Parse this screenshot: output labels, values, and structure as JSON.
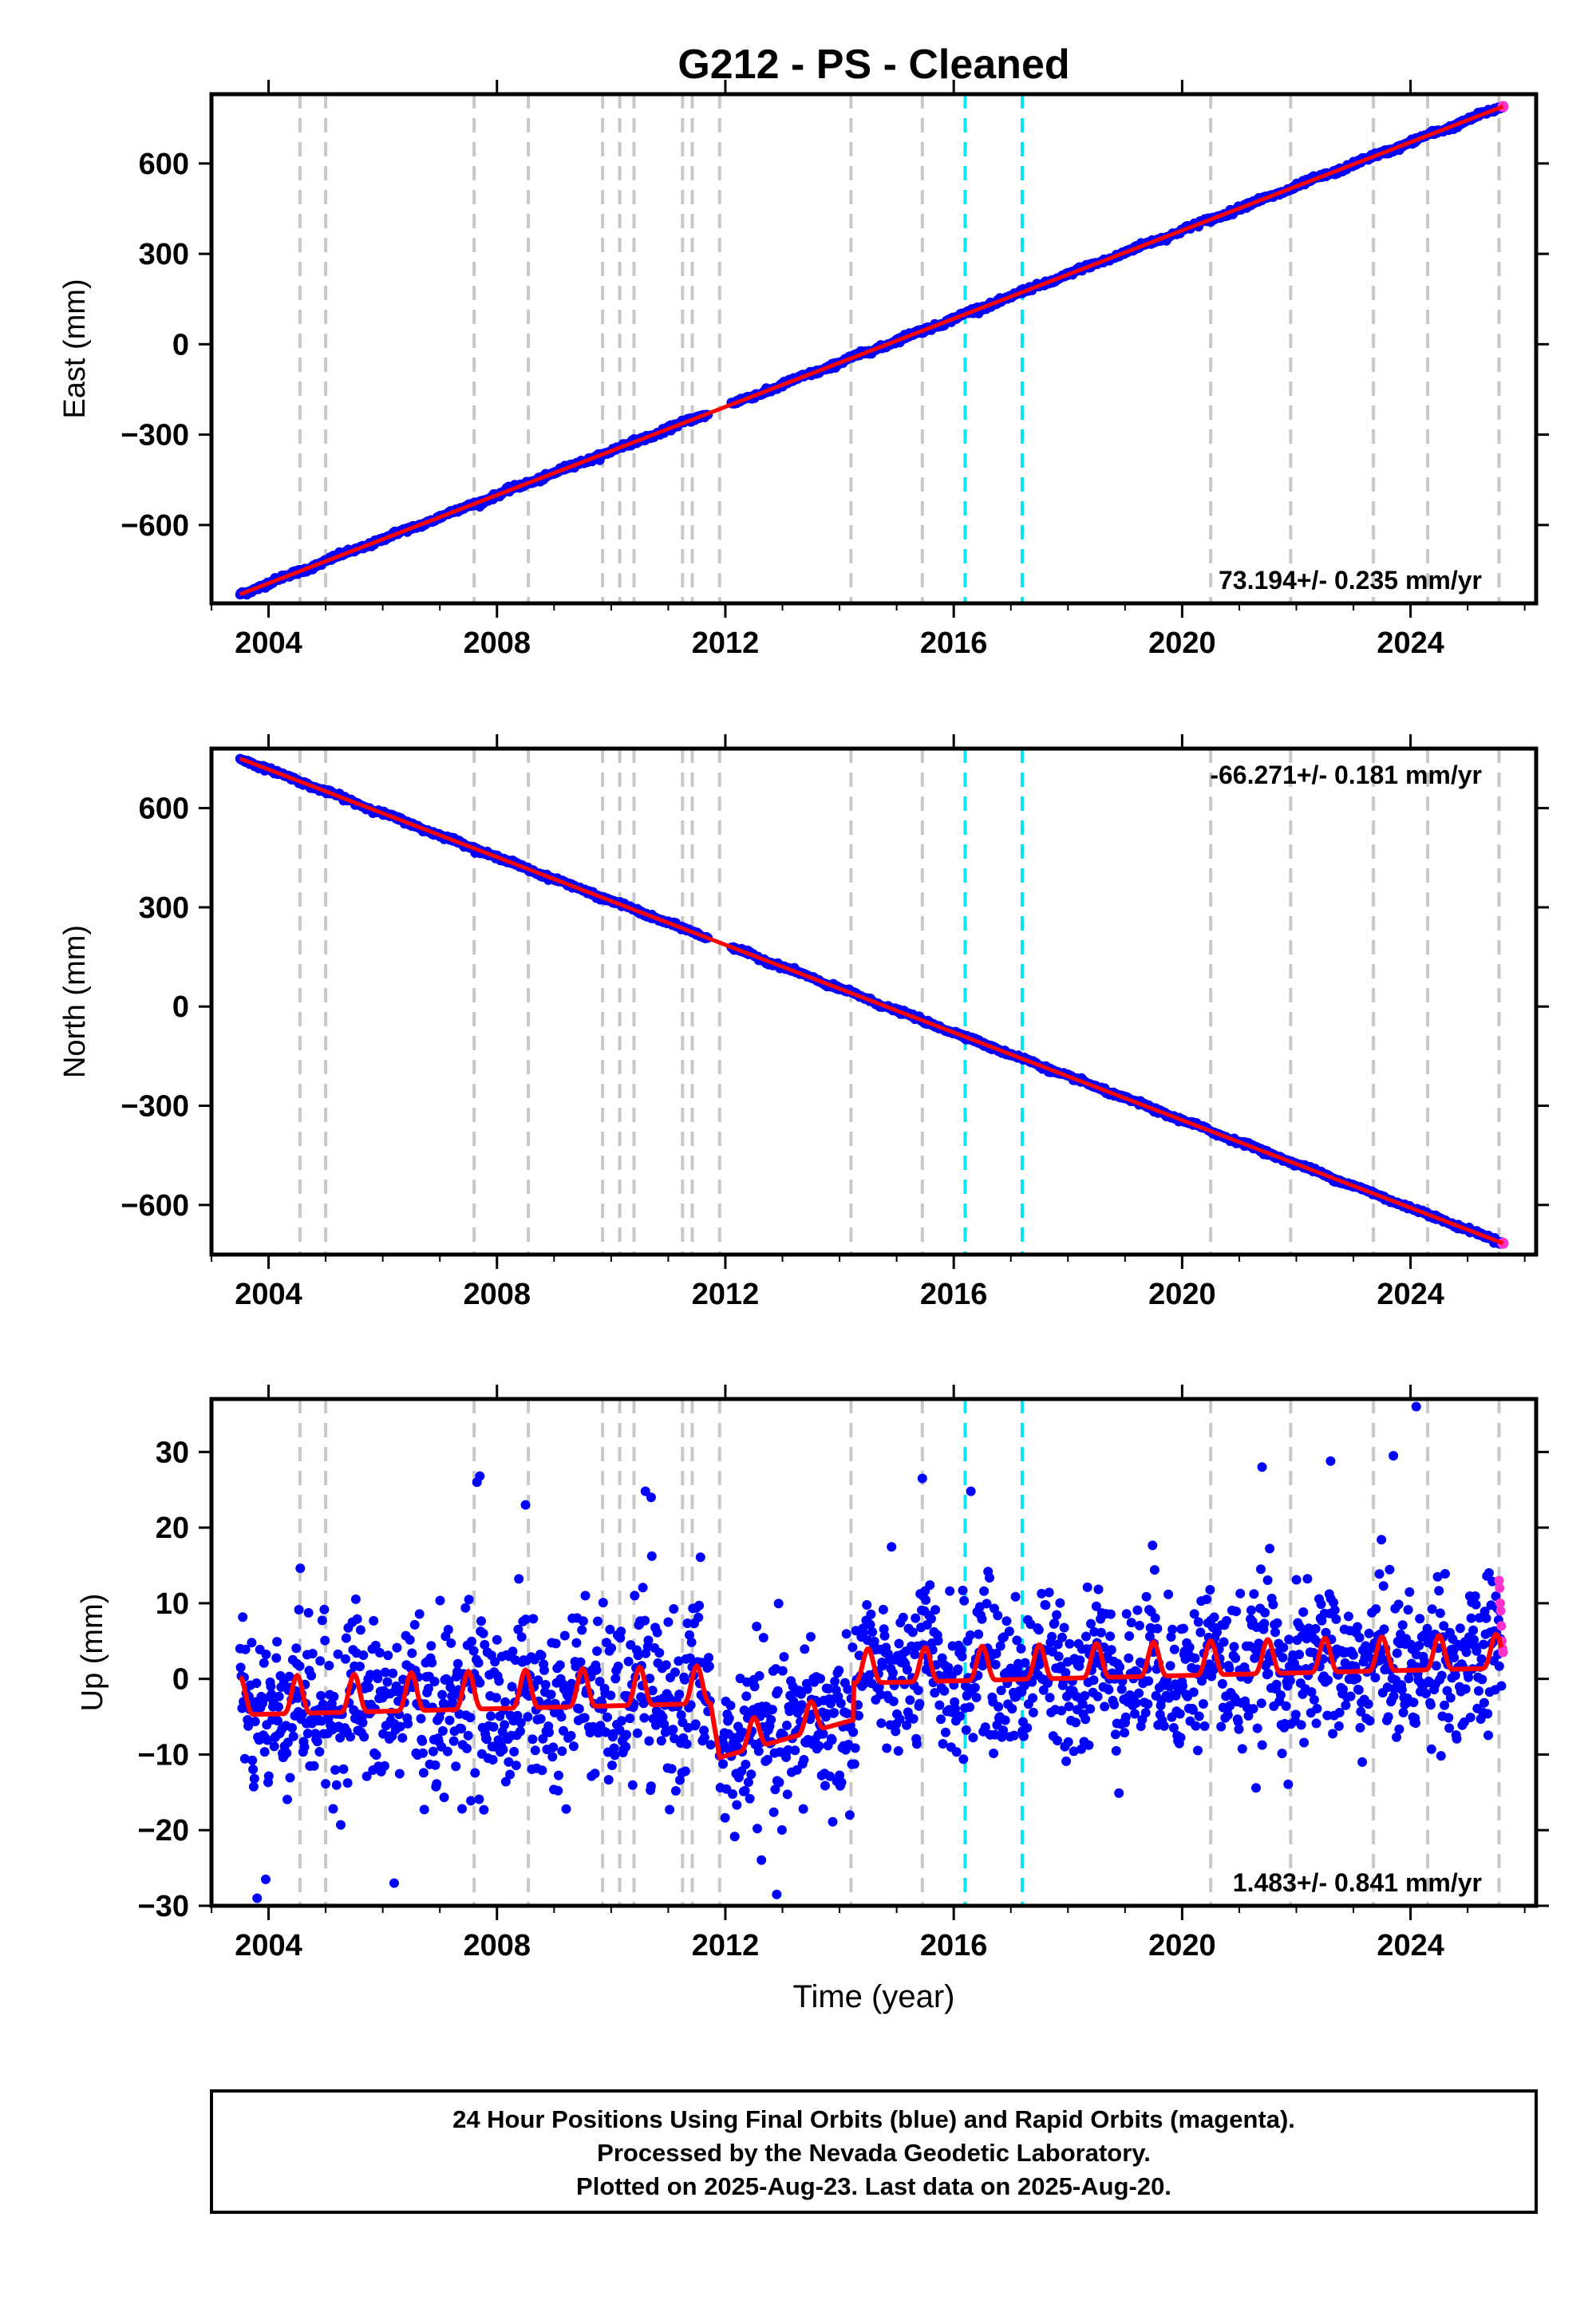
{
  "title": "G212  - PS - Cleaned",
  "footer": {
    "line1": "24 Hour Positions Using Final Orbits (blue) and Rapid Orbits (magenta).",
    "line2": "Processed by the Nevada Geodetic Laboratory.",
    "line3": "Plotted on 2025-Aug-23. Last data on 2025-Aug-20."
  },
  "colors": {
    "final": "#0000ff",
    "rapid": "#ff33cc",
    "model": "#ff0000",
    "equipment": "#c8c8c8",
    "earthquake": "#00e5ee"
  },
  "x_ticks": [
    "2004",
    "2008",
    "2012",
    "2016",
    "2020",
    "2024"
  ],
  "x_tick_values": [
    2004,
    2008,
    2012,
    2016,
    2020,
    2024
  ],
  "equipment_changes": [
    2004.55,
    2005.0,
    2007.6,
    2008.55,
    2009.85,
    2010.15,
    2010.4,
    2011.25,
    2011.42,
    2011.9,
    2014.2,
    2015.45,
    2020.5,
    2021.9,
    2023.35,
    2024.3,
    2025.55
  ],
  "earthquakes": [
    2016.2,
    2017.2
  ],
  "chart_data": [
    {
      "type": "scatter",
      "name": "east",
      "ylabel": "East (mm)",
      "xlabel": "",
      "xlim": [
        2003.0,
        2026.2
      ],
      "ylim": [
        -860,
        830
      ],
      "yticks": [
        600,
        300,
        0,
        -300,
        -600
      ],
      "ytick_labels": [
        "600",
        "300",
        "0",
        "−300",
        "−600"
      ],
      "rate_text": "73.194+/- 0.235 mm/yr",
      "rate_position": "bottom-right",
      "trend": {
        "t0": 2003.5,
        "y0": -830,
        "rate": 73.194
      },
      "step": {
        "time": 2011.95,
        "amount": 0
      },
      "seasonal_amplitude": 3,
      "noise_sd": 4,
      "data_gap": [
        2011.7,
        2012.1
      ]
    },
    {
      "type": "scatter",
      "name": "north",
      "ylabel": "North (mm)",
      "xlabel": "",
      "xlim": [
        2003.0,
        2026.2
      ],
      "ylim": [
        -750,
        780
      ],
      "yticks": [
        600,
        300,
        0,
        -300,
        -600
      ],
      "ytick_labels": [
        "600",
        "300",
        "0",
        "−300",
        "−600"
      ],
      "rate_text": "-66.271+/- 0.181 mm/yr",
      "rate_position": "top-right",
      "trend": {
        "t0": 2003.5,
        "y0": 750,
        "rate": -66.271
      },
      "step": {
        "time": 2011.95,
        "amount": 0
      },
      "seasonal_amplitude": 2,
      "noise_sd": 3,
      "data_gap": [
        2011.7,
        2012.1
      ]
    },
    {
      "type": "scatter",
      "name": "up",
      "ylabel": "Up (mm)",
      "xlabel": "Time (year)",
      "xlim": [
        2003.0,
        2026.2
      ],
      "ylim": [
        -30,
        37
      ],
      "yticks": [
        30,
        20,
        10,
        0,
        -10,
        -20,
        -30
      ],
      "ytick_labels": [
        "30",
        "20",
        "10",
        "0",
        "−10",
        "−20",
        "−30"
      ],
      "rate_text": "1.483+/- 0.841 mm/yr",
      "rate_position": "bottom-right",
      "segments": [
        {
          "start": 2003.5,
          "end": 2011.75,
          "base_start": -3,
          "base_end": -1.5,
          "amp": 5,
          "noise": 5.5
        },
        {
          "start": 2011.9,
          "end": 2014.25,
          "base_start": -9,
          "base_end": -4,
          "amp": 4,
          "noise": 5.5
        },
        {
          "start": 2014.25,
          "end": 2025.6,
          "base_start": 1,
          "base_end": 3,
          "amp": 4.5,
          "noise": 5
        }
      ],
      "outliers": [
        {
          "x": 2024.1,
          "y": 36
        },
        {
          "x": 2007.7,
          "y": 26.8
        },
        {
          "x": 2007.65,
          "y": 26
        },
        {
          "x": 2010.6,
          "y": 24.8
        },
        {
          "x": 2010.7,
          "y": 24
        },
        {
          "x": 2008.5,
          "y": 23
        },
        {
          "x": 2022.6,
          "y": 28.8
        },
        {
          "x": 2021.4,
          "y": 28
        },
        {
          "x": 2023.7,
          "y": 29.5
        },
        {
          "x": 2015.45,
          "y": 26.5
        },
        {
          "x": 2016.3,
          "y": 24.8
        },
        {
          "x": 2003.8,
          "y": -29
        },
        {
          "x": 2003.95,
          "y": -26.5
        },
        {
          "x": 2006.2,
          "y": -27
        },
        {
          "x": 2012.9,
          "y": -28.5
        }
      ],
      "rapid_points": [
        {
          "x": 2025.55,
          "y": 13
        },
        {
          "x": 2025.56,
          "y": 12
        },
        {
          "x": 2025.57,
          "y": 10
        },
        {
          "x": 2025.58,
          "y": 9
        },
        {
          "x": 2025.59,
          "y": 7
        },
        {
          "x": 2025.6,
          "y": 5
        },
        {
          "x": 2025.61,
          "y": 4
        },
        {
          "x": 2025.62,
          "y": 3.5
        }
      ]
    }
  ]
}
